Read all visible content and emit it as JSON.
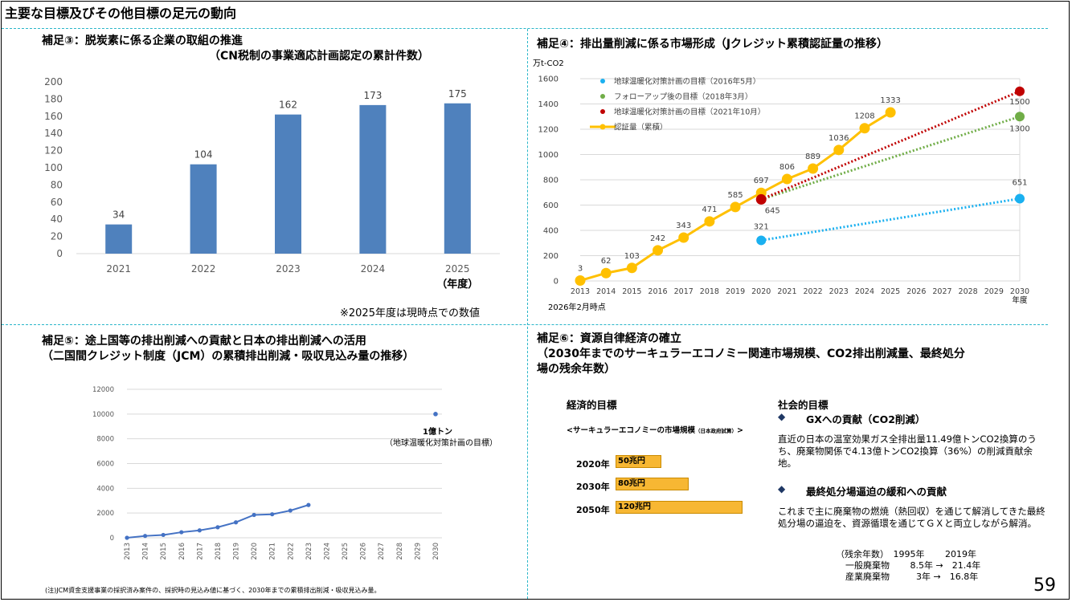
{
  "page_title": "主要な目標及びその他目標の足元の動向",
  "page_number": "59",
  "q3": {
    "title_line1": "補足③：脱炭素に係る企業の取組の推進",
    "title_line2": "（CN税制の事業適応計画認定の累計件数）",
    "x_unit": "（年度）",
    "note": "※2025年度は現時点での数値"
  },
  "q4": {
    "title": "補足④：排出量削減に係る市場形成（Jクレジット累積認証量の推移）",
    "y_unit": "万t-CO2",
    "x_unit": "年度",
    "as_of": "2026年2月時点",
    "legend": {
      "l1": "地球温暖化対策計画の目標（2016年5月）",
      "l2": "フォローアップ後の目標（2018年3月）",
      "l3": "地球温暖化対策計画の目標（2021年10月）",
      "l4": "認証量（累積）"
    }
  },
  "q5": {
    "title_line1": "補足⑤：途上国等の排出削減への貢献と日本の排出削減への活用",
    "title_line2": "（二国間クレジット制度（JCM）の累積排出削減・吸収見込み量の推移）",
    "target_value": "1億トン",
    "target_label": "（地球温暖化対策計画の目標）",
    "note": "(注)JCM資金支援事業の採択済み案件の、採択時の見込み値に基づく、2030年までの累積排出削減・吸収見込み量。"
  },
  "q6": {
    "title_line1": "補足⑥：資源自律経済の確立",
    "title_line2": "（2030年までのサーキュラーエコノミー関連市場規模、CO2排出削減量、最終処分",
    "title_line3": "場の残余年数）",
    "economic_heading": "経済的目標",
    "market_caption": "<サーキュラーエコノミーの市場規模",
    "market_caption_small": "（日本政府試算）",
    "market_caption_end": ">",
    "market": [
      {
        "year": "2020年",
        "value": "50兆円",
        "amount": 50
      },
      {
        "year": "2030年",
        "value": "80兆円",
        "amount": 80
      },
      {
        "year": "2050年",
        "value": "120兆円",
        "amount": 120
      }
    ],
    "social_heading": "社会的目標",
    "bullet": "◆",
    "gx_heading": "GXへの貢献（CO2削減）",
    "gx_text": "直近の日本の温室効果ガス全排出量11.49億トンCO2換算のうち、廃棄物関係で4.13億トンCO2換算（36%）の削減貢献余地。",
    "landfill_heading": "最終処分場逼迫の緩和への貢献",
    "landfill_text": "これまで主に廃棄物の燃焼（熱回収）を通じて解消してきた最終処分場の逼迫を、資源循環を通じてＧＸと両立しながら解消。",
    "stock_table": {
      "header": "（残余年数）　1995年　　 2019年",
      "row1": "一般廃棄物　　 8.5年 →　21.4年",
      "row2": "産業廃棄物　　　3年 →　16.8年"
    }
  },
  "chart_data": [
    {
      "type": "bar",
      "title": "",
      "categories": [
        "2021",
        "2022",
        "2023",
        "2024",
        "2025"
      ],
      "values": [
        34,
        104,
        162,
        173,
        175
      ],
      "ylim": [
        0,
        200
      ],
      "yticks": [
        0,
        20,
        40,
        60,
        80,
        100,
        120,
        140,
        160,
        180,
        200
      ],
      "xlabel": "（年度）",
      "color": "#4f81bd",
      "grid": false
    },
    {
      "type": "line",
      "title": "",
      "ylabel": "万t-CO2",
      "xlabel": "年度",
      "ylim": [
        0,
        1600
      ],
      "yticks": [
        0,
        200,
        400,
        600,
        800,
        1000,
        1200,
        1400,
        1600
      ],
      "x": [
        2013,
        2014,
        2015,
        2016,
        2017,
        2018,
        2019,
        2020,
        2021,
        2022,
        2023,
        2024,
        2025,
        2026,
        2027,
        2028,
        2029,
        2030
      ],
      "grid": true,
      "legend_position": "top-left",
      "series": [
        {
          "name": "認証量（累積）",
          "color": "#ffc000",
          "x": [
            2013,
            2014,
            2015,
            2016,
            2017,
            2018,
            2019,
            2020,
            2021,
            2022,
            2023,
            2024,
            2025
          ],
          "values": [
            3,
            62,
            103,
            242,
            343,
            471,
            585,
            697,
            806,
            889,
            1036,
            1208,
            1333
          ],
          "labels": [
            "3",
            "62",
            "103",
            "242",
            "343",
            "471",
            "585",
            "697",
            "806",
            "889",
            "1036",
            "1208",
            "1333"
          ]
        },
        {
          "name": "地球温暖化対策計画の目標（2016年5月）",
          "color": "#1ab0f0",
          "x": [
            2020,
            2030
          ],
          "values": [
            321,
            651
          ],
          "labels": [
            "321",
            "651"
          ]
        },
        {
          "name": "フォローアップ後の目標（2018年3月）",
          "color": "#70ad47",
          "x": [
            2020,
            2030
          ],
          "values": [
            645,
            1300
          ],
          "labels": [
            "645",
            "1300"
          ]
        },
        {
          "name": "地球温暖化対策計画の目標（2021年10月）",
          "color": "#c00000",
          "x": [
            2020,
            2030
          ],
          "values": [
            645,
            1500
          ],
          "labels": [
            "",
            "1500"
          ]
        }
      ]
    },
    {
      "type": "line",
      "title": "",
      "ylim": [
        0,
        12000
      ],
      "yticks": [
        0,
        2000,
        4000,
        6000,
        8000,
        10000,
        12000
      ],
      "x": [
        2013,
        2014,
        2015,
        2016,
        2017,
        2018,
        2019,
        2020,
        2021,
        2022,
        2023,
        2024,
        2025,
        2026,
        2027,
        2028,
        2029,
        2030
      ],
      "grid": true,
      "series": [
        {
          "name": "",
          "color": "#4472c4",
          "x": [
            2013,
            2014,
            2015,
            2016,
            2017,
            2018,
            2019,
            2020,
            2021,
            2022,
            2023
          ],
          "values": [
            0,
            150,
            230,
            450,
            600,
            850,
            1250,
            1850,
            1900,
            2200,
            2650
          ]
        },
        {
          "name": "",
          "color": "#4472c4",
          "x": [
            2030
          ],
          "values": [
            10000
          ]
        }
      ]
    }
  ]
}
